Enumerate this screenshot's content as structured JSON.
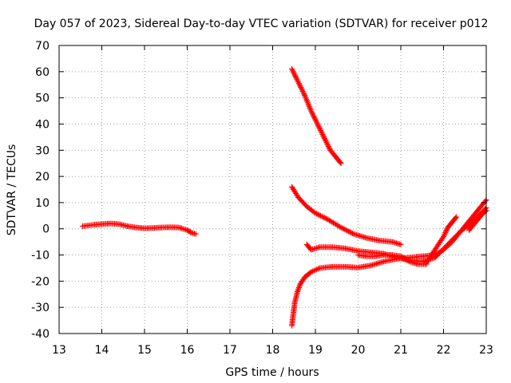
{
  "chart_data": {
    "type": "scatter",
    "title": "Day 057 of 2023, Sidereal Day-to-day VTEC variation (SDTVAR) for receiver p012",
    "xlabel": "GPS time / hours",
    "ylabel": "SDTVAR / TECUs",
    "xlim": [
      13,
      23
    ],
    "ylim": [
      -40,
      70
    ],
    "xticks": [
      "13",
      "14",
      "15",
      "16",
      "17",
      "18",
      "19",
      "20",
      "21",
      "22",
      "23"
    ],
    "yticks": [
      "-40",
      "-30",
      "-20",
      "-10",
      "0",
      "10",
      "20",
      "30",
      "40",
      "50",
      "60",
      "70"
    ],
    "grid": true,
    "marker": "+",
    "color": "#ff0000",
    "series": [
      {
        "x": [
          13.55,
          13.8,
          14.0,
          14.2,
          14.4,
          14.6,
          14.8,
          15.0,
          15.2,
          15.4,
          15.6,
          15.8,
          16.0,
          16.1,
          16.2
        ],
        "y": [
          1.0,
          1.5,
          1.8,
          2.0,
          1.8,
          1.0,
          0.5,
          0.2,
          0.3,
          0.5,
          0.6,
          0.5,
          -0.5,
          -1.5,
          -2.0
        ]
      },
      {
        "x": [
          18.45,
          18.6,
          18.75,
          18.9,
          19.05,
          19.2,
          19.35,
          19.5,
          19.6
        ],
        "y": [
          61.0,
          56.0,
          51.0,
          45.0,
          40.0,
          35.0,
          30.0,
          27.0,
          25.0
        ]
      },
      {
        "x": [
          18.45,
          18.6,
          18.8,
          19.0,
          19.3,
          19.6,
          19.9,
          20.2,
          20.5,
          20.8,
          21.0
        ],
        "y": [
          16.0,
          12.0,
          8.5,
          6.0,
          3.5,
          0.5,
          -2.0,
          -3.5,
          -4.5,
          -5.0,
          -6.0
        ]
      },
      {
        "x": [
          18.45,
          18.48,
          18.52,
          18.58,
          18.65,
          18.75,
          18.9,
          19.1,
          19.4,
          19.7,
          20.0,
          20.3,
          20.6,
          20.9,
          21.2,
          21.5,
          21.8,
          22.0,
          22.2,
          22.4,
          22.6,
          22.8,
          23.0
        ],
        "y": [
          -37.0,
          -33.0,
          -28.0,
          -24.0,
          -21.0,
          -18.5,
          -16.5,
          -15.0,
          -14.5,
          -14.5,
          -14.8,
          -14.0,
          -12.5,
          -11.5,
          -11.0,
          -10.5,
          -10.0,
          -8.0,
          -5.0,
          -1.0,
          3.0,
          7.0,
          11.0
        ]
      },
      {
        "x": [
          18.8,
          18.9,
          19.1,
          19.4,
          19.7,
          20.0,
          20.3,
          20.6,
          20.9,
          21.2,
          21.5,
          21.8,
          22.1,
          22.4,
          22.7,
          23.0
        ],
        "y": [
          -6.0,
          -8.0,
          -7.0,
          -7.0,
          -7.5,
          -8.5,
          -9.0,
          -9.5,
          -11.0,
          -12.0,
          -12.5,
          -11.0,
          -6.0,
          -1.0,
          3.0,
          8.0
        ]
      },
      {
        "x": [
          20.0,
          20.2,
          20.4,
          20.6,
          20.8,
          21.0,
          21.2,
          21.4,
          21.6
        ],
        "y": [
          -10.0,
          -10.5,
          -10.5,
          -10.0,
          -10.0,
          -10.5,
          -12.5,
          -13.5,
          -13.5
        ]
      },
      {
        "x": [
          21.6,
          21.8,
          22.0,
          22.1,
          22.2,
          22.3
        ],
        "y": [
          -13.0,
          -8.0,
          -3.0,
          0.5,
          2.5,
          4.5
        ]
      },
      {
        "x": [
          22.6,
          22.7,
          22.8,
          22.9,
          23.0
        ],
        "y": [
          -0.5,
          1.5,
          3.5,
          5.5,
          7.0
        ]
      }
    ]
  }
}
